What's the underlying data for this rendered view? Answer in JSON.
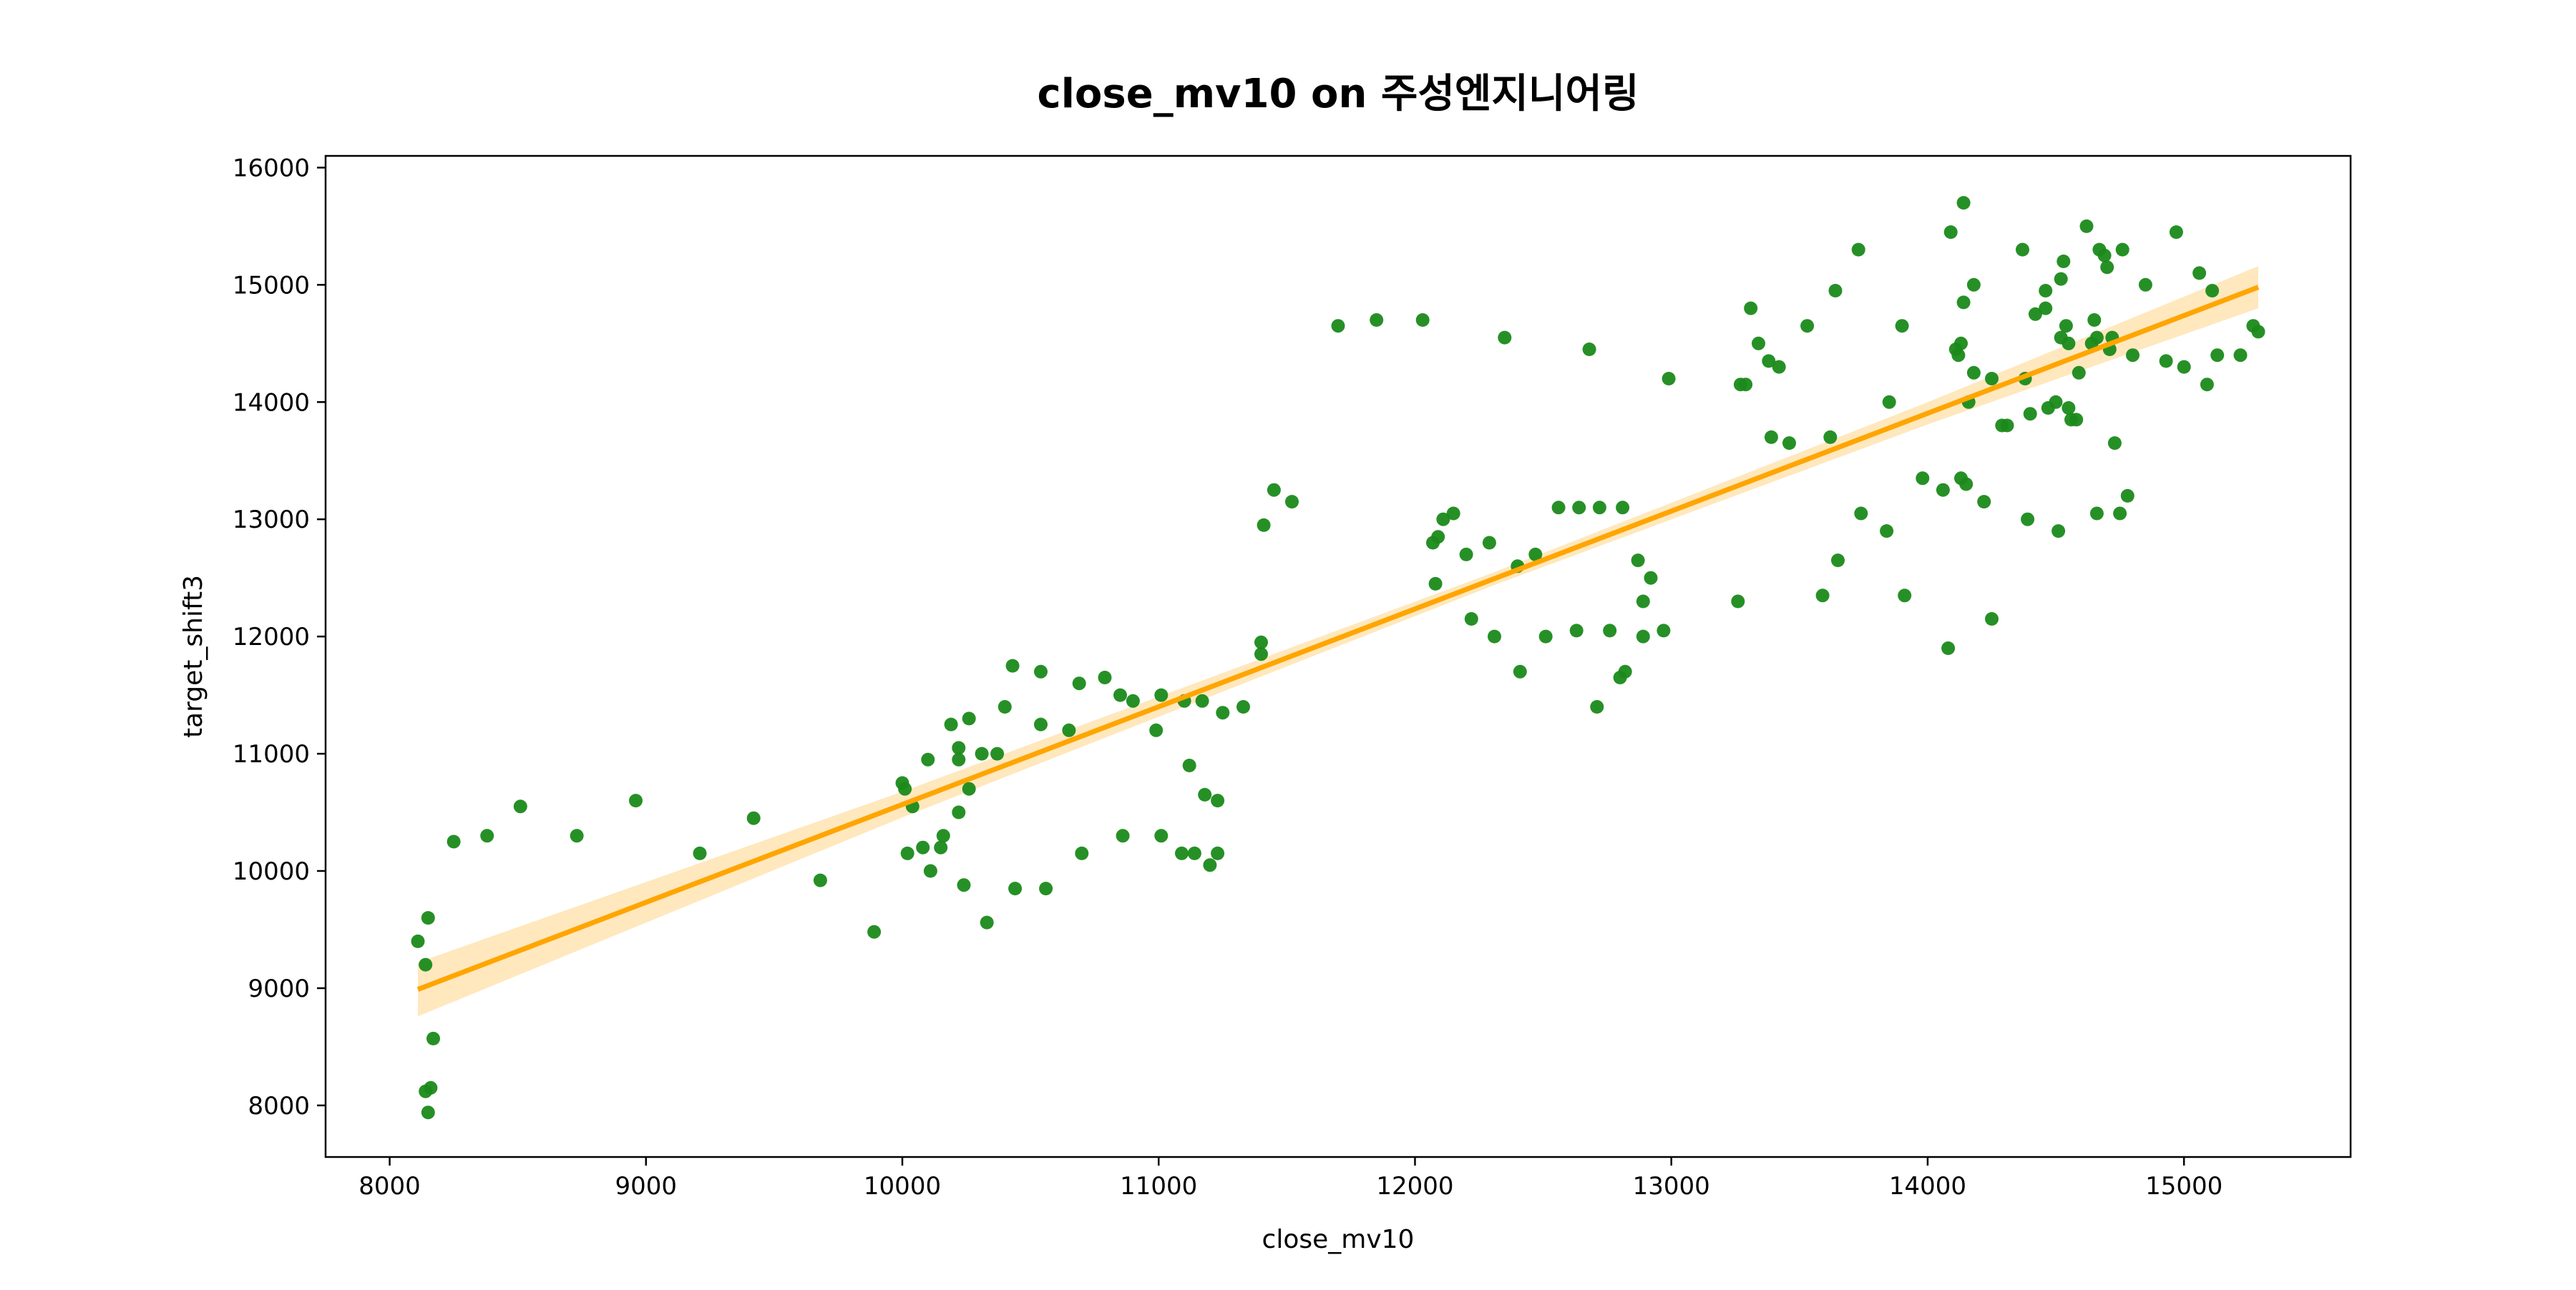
{
  "chart_data": {
    "type": "scatter",
    "title": "close_mv10 on 주성엔지니어링",
    "xlabel": "close_mv10",
    "ylabel": "target_shift3",
    "xlim": [
      7750,
      15650
    ],
    "ylim": [
      7560,
      16100
    ],
    "x_ticks": [
      8000,
      9000,
      10000,
      11000,
      12000,
      13000,
      14000,
      15000
    ],
    "y_ticks": [
      8000,
      9000,
      10000,
      11000,
      12000,
      13000,
      14000,
      15000,
      16000
    ],
    "grid": false,
    "point_color": "#1a8a1a",
    "line_color": "#ffa500",
    "ci_color": "#ffe0a8",
    "regression": {
      "x_range": [
        8110,
        15290
      ],
      "y_start": 8990,
      "y_end": 14980,
      "ci": [
        {
          "x": 8110,
          "half_width": 230
        },
        {
          "x": 10000,
          "half_width": 110
        },
        {
          "x": 12300,
          "half_width": 55
        },
        {
          "x": 14000,
          "half_width": 95
        },
        {
          "x": 15290,
          "half_width": 180
        }
      ]
    },
    "series": [
      {
        "points": [
          [
            8110,
            9400
          ],
          [
            8140,
            9200
          ],
          [
            8150,
            9600
          ],
          [
            8140,
            8120
          ],
          [
            8160,
            8150
          ],
          [
            8170,
            8570
          ],
          [
            8150,
            7940
          ],
          [
            8250,
            10250
          ],
          [
            8380,
            10300
          ],
          [
            8510,
            10550
          ],
          [
            8730,
            10300
          ],
          [
            8960,
            10600
          ],
          [
            9210,
            10150
          ],
          [
            9420,
            10450
          ],
          [
            9680,
            9920
          ],
          [
            9890,
            9480
          ],
          [
            10000,
            10750
          ],
          [
            10010,
            10700
          ],
          [
            10020,
            10150
          ],
          [
            10040,
            10550
          ],
          [
            10080,
            10200
          ],
          [
            10100,
            10950
          ],
          [
            10110,
            10000
          ],
          [
            10150,
            10200
          ],
          [
            10160,
            10300
          ],
          [
            10190,
            11250
          ],
          [
            10220,
            11050
          ],
          [
            10220,
            10950
          ],
          [
            10220,
            10500
          ],
          [
            10240,
            9880
          ],
          [
            10260,
            10700
          ],
          [
            10260,
            11300
          ],
          [
            10310,
            11000
          ],
          [
            10330,
            9560
          ],
          [
            10370,
            11000
          ],
          [
            10400,
            11400
          ],
          [
            10430,
            11750
          ],
          [
            10440,
            9850
          ],
          [
            10540,
            11250
          ],
          [
            10540,
            11700
          ],
          [
            10560,
            9850
          ],
          [
            10650,
            11200
          ],
          [
            10690,
            11600
          ],
          [
            10700,
            10150
          ],
          [
            10790,
            11650
          ],
          [
            10850,
            11500
          ],
          [
            10860,
            10300
          ],
          [
            10900,
            11450
          ],
          [
            10990,
            11200
          ],
          [
            11010,
            11500
          ],
          [
            11010,
            10300
          ],
          [
            11090,
            10150
          ],
          [
            11100,
            11450
          ],
          [
            11120,
            10900
          ],
          [
            11140,
            10150
          ],
          [
            11170,
            11450
          ],
          [
            11180,
            10650
          ],
          [
            11200,
            10050
          ],
          [
            11230,
            10600
          ],
          [
            11230,
            10150
          ],
          [
            11250,
            11350
          ],
          [
            11330,
            11400
          ],
          [
            11400,
            11850
          ],
          [
            11400,
            11950
          ],
          [
            11410,
            12950
          ],
          [
            11450,
            13250
          ],
          [
            11520,
            13150
          ],
          [
            11700,
            14650
          ],
          [
            11850,
            14700
          ],
          [
            12030,
            14700
          ],
          [
            12070,
            12800
          ],
          [
            12080,
            12450
          ],
          [
            12090,
            12850
          ],
          [
            12110,
            13000
          ],
          [
            12150,
            13050
          ],
          [
            12200,
            12700
          ],
          [
            12220,
            12150
          ],
          [
            12290,
            12800
          ],
          [
            12310,
            12000
          ],
          [
            12350,
            14550
          ],
          [
            12400,
            12600
          ],
          [
            12410,
            11700
          ],
          [
            12470,
            12700
          ],
          [
            12510,
            12000
          ],
          [
            12560,
            13100
          ],
          [
            12630,
            12050
          ],
          [
            12640,
            13100
          ],
          [
            12680,
            14450
          ],
          [
            12710,
            11400
          ],
          [
            12720,
            13100
          ],
          [
            12760,
            12050
          ],
          [
            12800,
            11650
          ],
          [
            12810,
            13100
          ],
          [
            12820,
            11700
          ],
          [
            12870,
            12650
          ],
          [
            12890,
            12300
          ],
          [
            12890,
            12000
          ],
          [
            12920,
            12500
          ],
          [
            12970,
            12050
          ],
          [
            12990,
            14200
          ],
          [
            13260,
            12300
          ],
          [
            13270,
            14150
          ],
          [
            13290,
            14150
          ],
          [
            13310,
            14800
          ],
          [
            13340,
            14500
          ],
          [
            13380,
            14350
          ],
          [
            13390,
            13700
          ],
          [
            13420,
            14300
          ],
          [
            13460,
            13650
          ],
          [
            13530,
            14650
          ],
          [
            13590,
            12350
          ],
          [
            13620,
            13700
          ],
          [
            13640,
            14950
          ],
          [
            13650,
            12650
          ],
          [
            13730,
            15300
          ],
          [
            13740,
            13050
          ],
          [
            13840,
            12900
          ],
          [
            13850,
            14000
          ],
          [
            13900,
            14650
          ],
          [
            13910,
            12350
          ],
          [
            13980,
            13350
          ],
          [
            14060,
            13250
          ],
          [
            14080,
            11900
          ],
          [
            14090,
            15450
          ],
          [
            14110,
            14450
          ],
          [
            14120,
            14400
          ],
          [
            14130,
            14500
          ],
          [
            14130,
            13350
          ],
          [
            14140,
            14850
          ],
          [
            14140,
            15700
          ],
          [
            14150,
            13300
          ],
          [
            14160,
            14000
          ],
          [
            14180,
            14250
          ],
          [
            14180,
            15000
          ],
          [
            14220,
            13150
          ],
          [
            14250,
            12150
          ],
          [
            14250,
            14200
          ],
          [
            14290,
            13800
          ],
          [
            14310,
            13800
          ],
          [
            14370,
            15300
          ],
          [
            14380,
            14200
          ],
          [
            14390,
            13000
          ],
          [
            14400,
            13900
          ],
          [
            14420,
            14750
          ],
          [
            14460,
            14950
          ],
          [
            14460,
            14800
          ],
          [
            14470,
            13950
          ],
          [
            14500,
            14000
          ],
          [
            14510,
            12900
          ],
          [
            14520,
            14550
          ],
          [
            14520,
            15050
          ],
          [
            14530,
            15200
          ],
          [
            14540,
            14650
          ],
          [
            14550,
            13950
          ],
          [
            14550,
            14500
          ],
          [
            14560,
            13850
          ],
          [
            14580,
            13850
          ],
          [
            14590,
            14250
          ],
          [
            14620,
            15500
          ],
          [
            14640,
            14500
          ],
          [
            14650,
            14700
          ],
          [
            14660,
            14550
          ],
          [
            14660,
            13050
          ],
          [
            14670,
            15300
          ],
          [
            14690,
            15250
          ],
          [
            14700,
            15150
          ],
          [
            14710,
            14450
          ],
          [
            14720,
            14550
          ],
          [
            14730,
            13650
          ],
          [
            14750,
            13050
          ],
          [
            14760,
            15300
          ],
          [
            14780,
            13200
          ],
          [
            14800,
            14400
          ],
          [
            14850,
            15000
          ],
          [
            14930,
            14350
          ],
          [
            14970,
            15450
          ],
          [
            15000,
            14300
          ],
          [
            15060,
            15100
          ],
          [
            15090,
            14150
          ],
          [
            15110,
            14950
          ],
          [
            15130,
            14400
          ],
          [
            15220,
            14400
          ],
          [
            15270,
            14650
          ],
          [
            15290,
            14600
          ]
        ]
      }
    ]
  }
}
